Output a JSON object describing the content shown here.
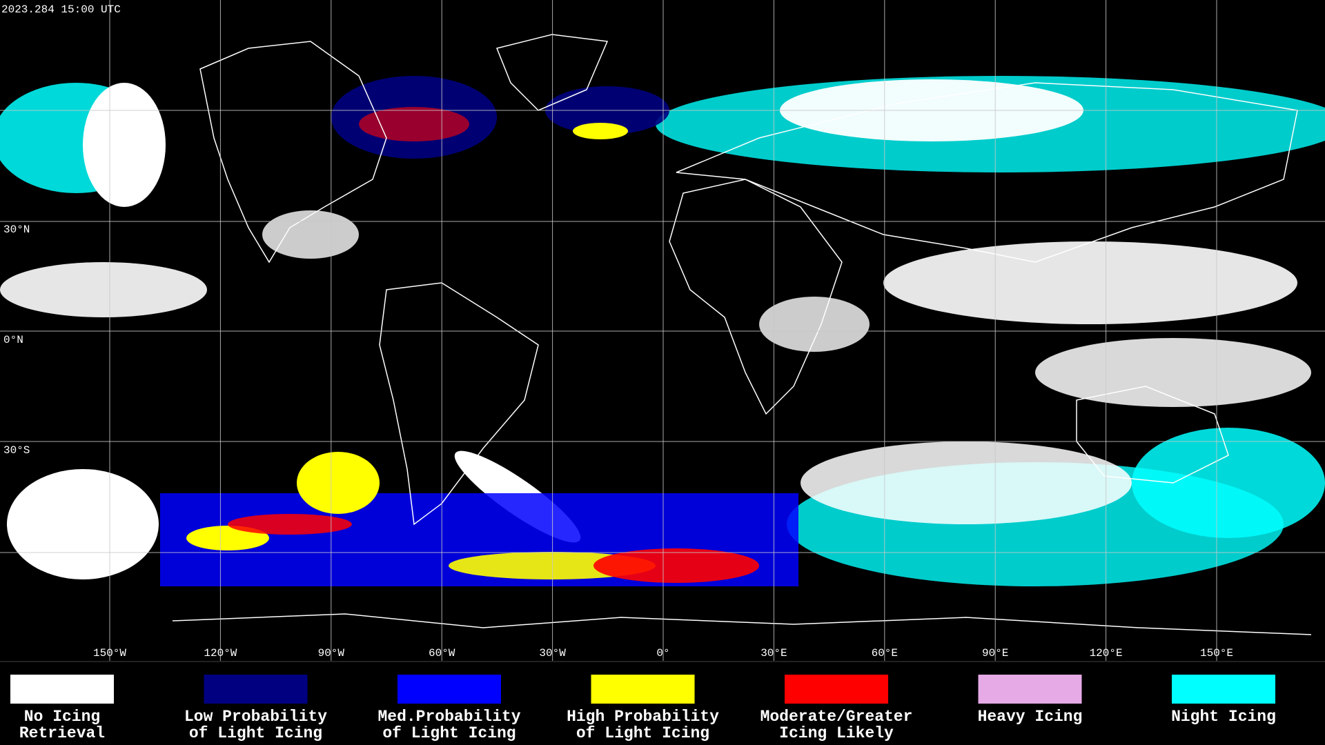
{
  "header": {
    "timestamp": "2023.284 15:00 UTC"
  },
  "map": {
    "longitude_labels": [
      "150°W",
      "120°W",
      "90°W",
      "60°W",
      "30°W",
      "0°",
      "30°E",
      "60°E",
      "90°E",
      "120°E",
      "150°E"
    ],
    "latitude_labels": [
      "30°N",
      "0°N",
      "30°S"
    ]
  },
  "legend": {
    "items": [
      {
        "lines": [
          "No Icing",
          "Retrieval"
        ],
        "color": "#ffffff"
      },
      {
        "lines": [
          "Low Probability",
          "of Light Icing"
        ],
        "color": "#000080"
      },
      {
        "lines": [
          "Med.Probability",
          "of Light Icing"
        ],
        "color": "#0000ff"
      },
      {
        "lines": [
          "High Probability",
          "of Light Icing"
        ],
        "color": "#ffff00"
      },
      {
        "lines": [
          "Moderate/Greater",
          "Icing Likely"
        ],
        "color": "#ff0000"
      },
      {
        "lines": [
          "Heavy Icing"
        ],
        "color": "#e6aae6"
      },
      {
        "lines": [
          "Night Icing"
        ],
        "color": "#00ffff"
      }
    ]
  }
}
